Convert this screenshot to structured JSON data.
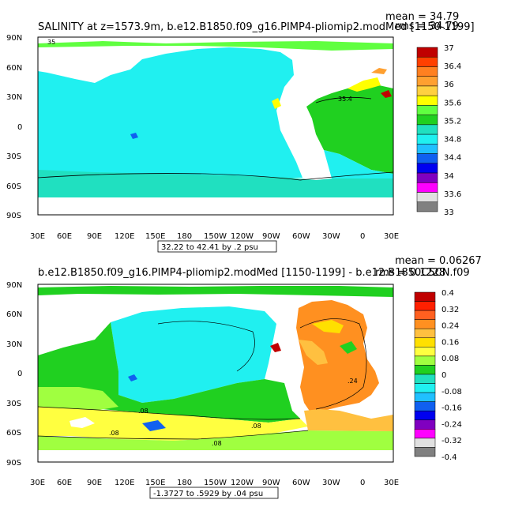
{
  "panels": [
    {
      "title": "SALINITY at z=1573.9m, b.e12.B1850.f09_g16.PIMP4-pliomip2.modMed [1150-1199]",
      "mean_text": "mean = 34.79",
      "rms_text": "rms = 34.79",
      "range_text": "32.22 to 42.41 by .2 psu",
      "colorbar": {
        "labels": [
          "37",
          "36.4",
          "36",
          "35.6",
          "35.2",
          "34.8",
          "34.4",
          "34",
          "33.6",
          "33"
        ],
        "colors": [
          "#c00000",
          "#ff4000",
          "#ff8020",
          "#ffa030",
          "#ffd040",
          "#ffff00",
          "#60ff40",
          "#20d020",
          "#20e0c0",
          "#20f0f0",
          "#20c0ff",
          "#1060f0",
          "#0000f0",
          "#8000c0",
          "#ff00ff",
          "#e0e0e0",
          "#808080"
        ]
      },
      "contour_labels": [
        "35.4",
        "35"
      ]
    },
    {
      "title": "b.e12.B1850.f09_g16.PIMP4-pliomip2.modMed [1150-1199] - b.e12.B1850C5CN.f09",
      "mean_text": "mean = 0.06267",
      "rms_text": "rms = 0.1228",
      "range_text": "-1.3727 to .5929 by .04 psu",
      "colorbar": {
        "labels": [
          "0.4",
          "0.32",
          "0.24",
          "0.16",
          "0.08",
          "0",
          "-0.08",
          "-0.16",
          "-0.24",
          "-0.32",
          "-0.4"
        ],
        "colors": [
          "#c00000",
          "#ff2000",
          "#ff6020",
          "#ff9020",
          "#ffc040",
          "#ffe000",
          "#ffff40",
          "#a0ff40",
          "#20d020",
          "#20e0c0",
          "#20f0f0",
          "#20c0ff",
          "#1060f0",
          "#0000f0",
          "#8000c0",
          "#ff00ff",
          "#e0e0e0",
          "#808080"
        ]
      },
      "contour_labels": [
        ".08",
        ".08",
        ".08",
        ".08",
        ".24"
      ]
    }
  ],
  "axes": {
    "lat_labels": [
      "90N",
      "60N",
      "30N",
      "0",
      "30S",
      "60S",
      "90S"
    ],
    "lon_labels": [
      "30E",
      "60E",
      "90E",
      "120E",
      "150E",
      "180",
      "150W",
      "120W",
      "90W",
      "60W",
      "30W",
      "0",
      "30E"
    ]
  },
  "colors": {
    "ocean1": "#20f0f0",
    "ocean1_south": "#20e0c0",
    "atlantic1": "#20d020",
    "land": "#ffffff"
  }
}
